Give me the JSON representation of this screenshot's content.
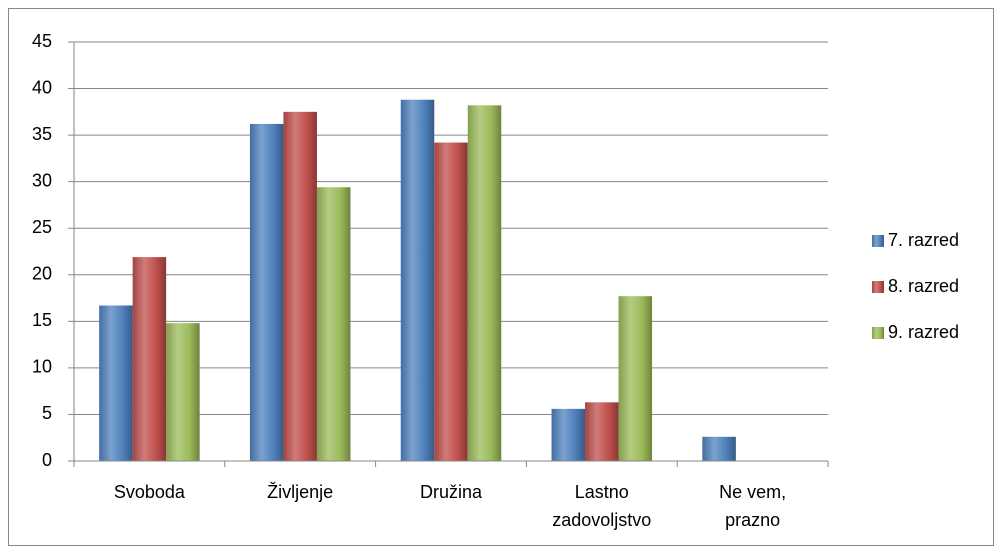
{
  "chart_data": {
    "type": "bar",
    "categories": [
      "Svoboda",
      "Življenje",
      "Družina",
      "Lastno\nzadovoljstvo",
      "Ne vem,\nprazno"
    ],
    "series": [
      {
        "name": "7. razred",
        "color": "#4f81bd",
        "values": [
          16.7,
          36.2,
          38.8,
          5.6,
          2.6
        ]
      },
      {
        "name": "8. razred",
        "color": "#c0504d",
        "values": [
          21.9,
          37.5,
          34.2,
          6.3,
          0
        ]
      },
      {
        "name": "9. razred",
        "color": "#9bbb59",
        "values": [
          14.8,
          29.4,
          38.2,
          17.7,
          0
        ]
      }
    ],
    "ylim": [
      0,
      45
    ],
    "yticks": [
      0,
      5,
      10,
      15,
      20,
      25,
      30,
      35,
      40,
      45
    ],
    "grid": true,
    "legend": "right"
  }
}
